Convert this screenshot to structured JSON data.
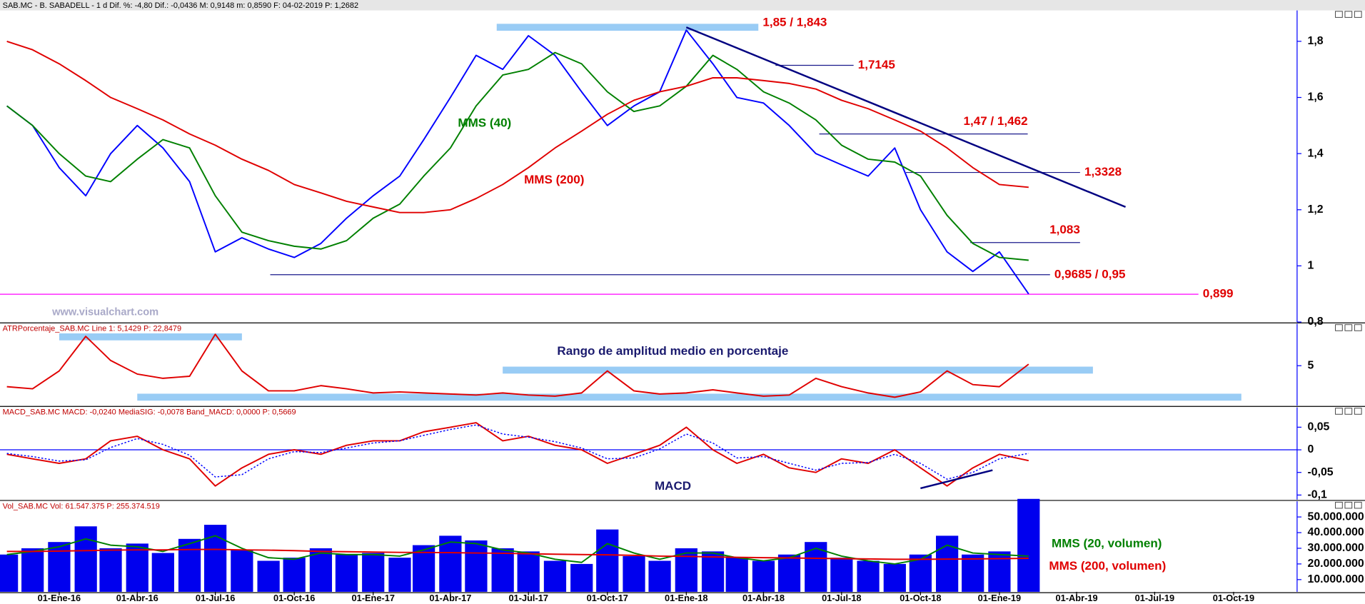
{
  "chart_data": [
    {
      "type": "line",
      "header": "SAB.MC - B. SABADELL - 1 d  Dif. %: -4,80  Dif.: -0,0436  M: 0,9148  m: 0,8590  F: 04-02-2019  P: 1,2682",
      "watermark": "www.visualchart.com",
      "xlim": [
        "2015-10-24",
        "2019-12-14"
      ],
      "ylim": [
        0.8,
        1.91
      ],
      "yticks": [
        {
          "value": 0.8,
          "label": "0,8"
        },
        1,
        {
          "value": 1.2,
          "label": "1,2"
        },
        {
          "value": 1.4,
          "label": "1,4"
        },
        {
          "value": 1.6,
          "label": "1,6"
        },
        {
          "value": 1.8,
          "label": "1,8"
        }
      ],
      "x": [
        "2015-11-01",
        "2015-12-01",
        "2016-01-01",
        "2016-02-01",
        "2016-03-01",
        "2016-04-01",
        "2016-05-01",
        "2016-06-01",
        "2016-07-01",
        "2016-08-01",
        "2016-09-01",
        "2016-10-01",
        "2016-11-01",
        "2016-12-01",
        "2017-01-01",
        "2017-02-01",
        "2017-03-01",
        "2017-04-01",
        "2017-05-01",
        "2017-06-01",
        "2017-07-01",
        "2017-08-01",
        "2017-09-01",
        "2017-10-01",
        "2017-11-01",
        "2017-12-01",
        "2018-01-01",
        "2018-02-01",
        "2018-03-01",
        "2018-04-01",
        "2018-05-01",
        "2018-06-01",
        "2018-07-01",
        "2018-08-01",
        "2018-09-01",
        "2018-10-01",
        "2018-11-01",
        "2018-12-01",
        "2019-01-01",
        "2019-02-04"
      ],
      "series": [
        {
          "color": "#0000ff",
          "values": [
            1.57,
            1.5,
            1.35,
            1.25,
            1.4,
            1.5,
            1.42,
            1.3,
            1.05,
            1.1,
            1.06,
            1.03,
            1.08,
            1.17,
            1.25,
            1.32,
            1.45,
            1.6,
            1.75,
            1.7,
            1.82,
            1.75,
            1.62,
            1.5,
            1.57,
            1.62,
            1.84,
            1.72,
            1.6,
            1.58,
            1.5,
            1.4,
            1.36,
            1.32,
            1.42,
            1.2,
            1.05,
            0.98,
            1.05,
            0.9
          ]
        },
        {
          "name": "MMS (40)",
          "color": "#008000",
          "values": [
            1.57,
            1.5,
            1.4,
            1.32,
            1.3,
            1.38,
            1.45,
            1.42,
            1.25,
            1.12,
            1.09,
            1.07,
            1.06,
            1.09,
            1.17,
            1.22,
            1.32,
            1.42,
            1.57,
            1.68,
            1.7,
            1.76,
            1.72,
            1.62,
            1.55,
            1.57,
            1.64,
            1.75,
            1.7,
            1.62,
            1.58,
            1.52,
            1.43,
            1.38,
            1.37,
            1.32,
            1.18,
            1.08,
            1.03,
            1.02
          ]
        },
        {
          "name": "MMS (200)",
          "color": "#e00000",
          "values": [
            1.8,
            1.77,
            1.72,
            1.66,
            1.6,
            1.56,
            1.52,
            1.47,
            1.43,
            1.38,
            1.34,
            1.29,
            1.26,
            1.23,
            1.21,
            1.19,
            1.19,
            1.2,
            1.24,
            1.29,
            1.35,
            1.42,
            1.48,
            1.54,
            1.59,
            1.62,
            1.64,
            1.67,
            1.67,
            1.66,
            1.65,
            1.63,
            1.59,
            1.56,
            1.52,
            1.48,
            1.42,
            1.35,
            1.29,
            1.28
          ]
        }
      ],
      "levels": [
        {
          "label": "1,85 / 1,843",
          "value": 1.85,
          "start": "2017-05-25",
          "end": "2018-03-26",
          "style": "band",
          "color": "#99ccf5",
          "label_pos": "right"
        },
        {
          "label": "1,7145",
          "value": 1.7145,
          "start": "2018-04-15",
          "end": "2018-07-15",
          "style": "line",
          "color": "#1a1a8c",
          "label_pos": "right"
        },
        {
          "label": "1,47 / 1,462",
          "value": 1.47,
          "start": "2018-06-05",
          "end": "2019-02-03",
          "style": "line",
          "color": "#1a1a8c",
          "label_pos": "above"
        },
        {
          "label": "1,3328",
          "value": 1.3328,
          "start": "2018-09-14",
          "end": "2019-04-05",
          "style": "line",
          "color": "#1a1a8c",
          "label_pos": "right"
        },
        {
          "label": "1,083",
          "value": 1.083,
          "start": "2018-11-28",
          "end": "2019-04-05",
          "style": "line",
          "color": "#1a1a8c",
          "label_pos": "above"
        },
        {
          "label": "0,9685 / 0,95",
          "value": 0.9685,
          "start": "2016-09-03",
          "end": "2019-03-01",
          "style": "line",
          "color": "#1a1a8c",
          "label_pos": "right"
        },
        {
          "label": "0,899",
          "value": 0.899,
          "start": "2015-10-24",
          "end": "2019-08-21",
          "style": "line",
          "color": "#ff00ff",
          "label_pos": "right"
        }
      ],
      "trendline": {
        "color": "#000080",
        "x": [
          "2018-01-01",
          "2019-05-28"
        ],
        "y": [
          1.85,
          1.21
        ]
      }
    },
    {
      "type": "line",
      "header": "ATRPorcentaje_SAB.MC  Line 1: 5,1429  P: 22,8479",
      "annotation": "Rango de amplitud medio en porcentaje",
      "xlim": [
        "2015-10-24",
        "2019-12-14"
      ],
      "ylim": [
        1.2,
        9
      ],
      "yticks": [
        5
      ],
      "x": [
        "2015-11-01",
        "2015-12-01",
        "2016-01-01",
        "2016-02-01",
        "2016-03-01",
        "2016-04-01",
        "2016-05-01",
        "2016-06-01",
        "2016-07-01",
        "2016-08-01",
        "2016-09-01",
        "2016-10-01",
        "2016-11-01",
        "2016-12-01",
        "2017-01-01",
        "2017-02-01",
        "2017-03-01",
        "2017-04-01",
        "2017-05-01",
        "2017-06-01",
        "2017-07-01",
        "2017-08-01",
        "2017-09-01",
        "2017-10-01",
        "2017-11-01",
        "2017-12-01",
        "2018-01-01",
        "2018-02-01",
        "2018-03-01",
        "2018-04-01",
        "2018-05-01",
        "2018-06-01",
        "2018-07-01",
        "2018-08-01",
        "2018-09-01",
        "2018-10-01",
        "2018-11-01",
        "2018-12-01",
        "2019-01-01",
        "2019-02-04"
      ],
      "series": [
        {
          "color": "#e00000",
          "values": [
            3,
            2.8,
            4.5,
            7.8,
            5.5,
            4.2,
            3.8,
            4,
            8,
            4.5,
            2.6,
            2.6,
            3.1,
            2.8,
            2.4,
            2.5,
            2.4,
            2.3,
            2.2,
            2.4,
            2.2,
            2.1,
            2.4,
            4.5,
            2.6,
            2.3,
            2.4,
            2.7,
            2.4,
            2.1,
            2.2,
            3.8,
            3,
            2.4,
            2,
            2.5,
            4.5,
            3.2,
            3,
            5.1429
          ]
        }
      ],
      "levels": [
        {
          "value": 7.75,
          "start": "2016-01-01",
          "end": "2016-08-01",
          "style": "band",
          "color": "#99ccf5"
        },
        {
          "value": 4.58,
          "start": "2017-06-01",
          "end": "2019-04-20",
          "style": "band",
          "color": "#99ccf5"
        },
        {
          "value": 2,
          "start": "2016-04-01",
          "end": "2019-10-10",
          "style": "band",
          "color": "#99ccf5"
        }
      ]
    },
    {
      "type": "line",
      "header": "MACD_SAB.MC  MACD: -0,0240  MediaSIG: -0,0078  Band_MACD: 0,0000  P: 0,5669",
      "xlim": [
        "2015-10-24",
        "2019-12-14"
      ],
      "ylim": [
        -0.11,
        0.094
      ],
      "yticks": [
        {
          "value": -0.1,
          "label": "-0,1"
        },
        {
          "value": -0.05,
          "label": "-0,05"
        },
        0,
        {
          "value": 0.05,
          "label": "0,05"
        }
      ],
      "zero_line": {
        "value": 0,
        "color": "#0000ff"
      },
      "x": [
        "2015-11-01",
        "2015-12-01",
        "2016-01-01",
        "2016-02-01",
        "2016-03-01",
        "2016-04-01",
        "2016-05-01",
        "2016-06-01",
        "2016-07-01",
        "2016-08-01",
        "2016-09-01",
        "2016-10-01",
        "2016-11-01",
        "2016-12-01",
        "2017-01-01",
        "2017-02-01",
        "2017-03-01",
        "2017-04-01",
        "2017-05-01",
        "2017-06-01",
        "2017-07-01",
        "2017-08-01",
        "2017-09-01",
        "2017-10-01",
        "2017-11-01",
        "2017-12-01",
        "2018-01-01",
        "2018-02-01",
        "2018-03-01",
        "2018-04-01",
        "2018-05-01",
        "2018-06-01",
        "2018-07-01",
        "2018-08-01",
        "2018-09-01",
        "2018-10-01",
        "2018-11-01",
        "2018-12-01",
        "2019-01-01",
        "2019-02-04"
      ],
      "series": [
        {
          "name": "MACD",
          "color": "#e00000",
          "values": [
            -0.01,
            -0.02,
            -0.03,
            -0.02,
            0.02,
            0.03,
            0,
            -0.02,
            -0.08,
            -0.04,
            -0.01,
            0,
            -0.01,
            0.01,
            0.02,
            0.02,
            0.04,
            0.05,
            0.06,
            0.02,
            0.03,
            0.01,
            0,
            -0.03,
            -0.01,
            0.01,
            0.05,
            0,
            -0.03,
            -0.01,
            -0.04,
            -0.05,
            -0.02,
            -0.03,
            0,
            -0.04,
            -0.08,
            -0.04,
            -0.01,
            -0.024
          ]
        },
        {
          "color": "#0000ff",
          "dashed": true,
          "values": [
            -0.008,
            -0.015,
            -0.025,
            -0.022,
            0.005,
            0.025,
            0.012,
            -0.012,
            -0.06,
            -0.055,
            -0.02,
            -0.004,
            -0.006,
            0.004,
            0.015,
            0.02,
            0.032,
            0.045,
            0.055,
            0.035,
            0.028,
            0.018,
            0.004,
            -0.02,
            -0.018,
            0.002,
            0.035,
            0.015,
            -0.018,
            -0.015,
            -0.03,
            -0.045,
            -0.03,
            -0.028,
            -0.01,
            -0.03,
            -0.065,
            -0.05,
            -0.02,
            -0.0078
          ]
        }
      ],
      "trendline": {
        "color": "#000080",
        "x": [
          "2018-10-01",
          "2018-12-24"
        ],
        "y": [
          -0.085,
          -0.045
        ]
      }
    },
    {
      "type": "bar",
      "header": "Vol_SAB.MC  Vol: 61.547.375  P: 255.374.519",
      "xlim": [
        "2015-10-24",
        "2019-12-14"
      ],
      "ylim": [
        2200000,
        60000000
      ],
      "yticks": [
        {
          "value": 10000000,
          "label": "10.000.000"
        },
        {
          "value": 20000000,
          "label": "20.000.000"
        },
        {
          "value": 30000000,
          "label": "30.000.000"
        },
        {
          "value": 40000000,
          "label": "40.000.000"
        },
        {
          "value": 50000000,
          "label": "50.000.000"
        }
      ],
      "xticks": [
        {
          "value": "2016-01-01",
          "label": "01-Ene-16"
        },
        {
          "value": "2016-04-01",
          "label": "01-Abr-16"
        },
        {
          "value": "2016-07-01",
          "label": "01-Jul-16"
        },
        {
          "value": "2016-10-01",
          "label": "01-Oct-16"
        },
        {
          "value": "2017-01-01",
          "label": "01-Ene-17"
        },
        {
          "value": "2017-04-01",
          "label": "01-Abr-17"
        },
        {
          "value": "2017-07-01",
          "label": "01-Jul-17"
        },
        {
          "value": "2017-10-01",
          "label": "01-Oct-17"
        },
        {
          "value": "2018-01-01",
          "label": "01-Ene-18"
        },
        {
          "value": "2018-04-01",
          "label": "01-Abr-18"
        },
        {
          "value": "2018-07-01",
          "label": "01-Jul-18"
        },
        {
          "value": "2018-10-01",
          "label": "01-Oct-18"
        },
        {
          "value": "2019-01-01",
          "label": "01-Ene-19"
        },
        {
          "value": "2019-04-01",
          "label": "01-Abr-19"
        },
        {
          "value": "2019-07-01",
          "label": "01-Jul-19"
        },
        {
          "value": "2019-10-01",
          "label": "01-Oct-19"
        }
      ],
      "x": [
        "2015-11-01",
        "2015-12-01",
        "2016-01-01",
        "2016-02-01",
        "2016-03-01",
        "2016-04-01",
        "2016-05-01",
        "2016-06-01",
        "2016-07-01",
        "2016-08-01",
        "2016-09-01",
        "2016-10-01",
        "2016-11-01",
        "2016-12-01",
        "2017-01-01",
        "2017-02-01",
        "2017-03-01",
        "2017-04-01",
        "2017-05-01",
        "2017-06-01",
        "2017-07-01",
        "2017-08-01",
        "2017-09-01",
        "2017-10-01",
        "2017-11-01",
        "2017-12-01",
        "2018-01-01",
        "2018-02-01",
        "2018-03-01",
        "2018-04-01",
        "2018-05-01",
        "2018-06-01",
        "2018-07-01",
        "2018-08-01",
        "2018-09-01",
        "2018-10-01",
        "2018-11-01",
        "2018-12-01",
        "2019-01-01",
        "2019-02-04"
      ],
      "series": [
        {
          "kind": "bar",
          "color": "#0000ee",
          "values": [
            26000000,
            30000000,
            34000000,
            44000000,
            30000000,
            33000000,
            27000000,
            36000000,
            45000000,
            29000000,
            22000000,
            24000000,
            30000000,
            26000000,
            27000000,
            24000000,
            32000000,
            38000000,
            35000000,
            30000000,
            28000000,
            22000000,
            20000000,
            42000000,
            25000000,
            22000000,
            30000000,
            28000000,
            24000000,
            22000000,
            26000000,
            34000000,
            24000000,
            22000000,
            20000000,
            26000000,
            38000000,
            26000000,
            28000000,
            61547375
          ]
        },
        {
          "kind": "line",
          "name": "MMS (20, volumen)",
          "color": "#008000",
          "values": [
            26000000,
            28000000,
            31000000,
            36000000,
            32000000,
            31000000,
            28000000,
            33000000,
            38000000,
            30000000,
            24000000,
            23000000,
            27000000,
            26000000,
            26000000,
            25000000,
            29000000,
            34000000,
            33000000,
            29000000,
            27000000,
            23000000,
            21000000,
            33000000,
            27000000,
            23000000,
            27000000,
            27000000,
            24000000,
            22000000,
            24000000,
            30000000,
            25000000,
            22000000,
            20000000,
            23000000,
            32000000,
            27000000,
            26000000,
            25000000
          ]
        },
        {
          "kind": "line",
          "name": "MMS (200, volumen)",
          "color": "#e00000",
          "values": [
            28000000,
            28000000,
            28200000,
            28500000,
            28800000,
            29000000,
            29000000,
            29200000,
            29300000,
            29000000,
            28800000,
            28500000,
            28000000,
            27800000,
            27600000,
            27400000,
            27300000,
            27200000,
            27000000,
            26800000,
            26500000,
            26200000,
            26000000,
            25800000,
            25500000,
            25000000,
            24800000,
            24500000,
            24200000,
            24000000,
            23800000,
            23600000,
            23400000,
            23200000,
            23000000,
            23000000,
            23100000,
            23200000,
            23400000,
            23600000
          ]
        }
      ]
    }
  ]
}
